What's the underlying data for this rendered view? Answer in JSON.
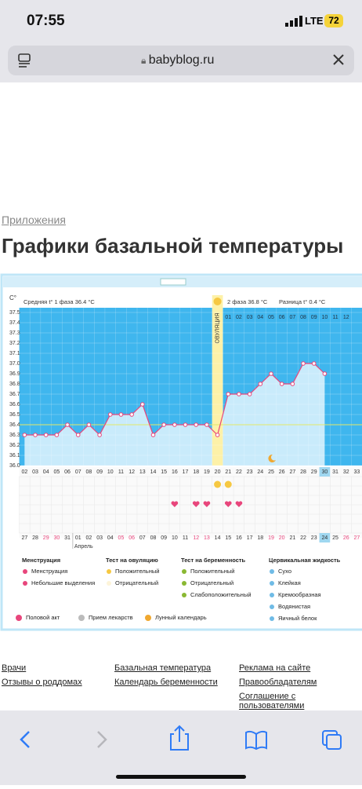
{
  "status": {
    "time": "07:55",
    "network": "LTE",
    "battery": "72"
  },
  "browser": {
    "url": "babyblog.ru"
  },
  "page": {
    "breadcrumb": "Приложения",
    "title": "Графики базальной температуры"
  },
  "chart_data": {
    "type": "line",
    "y_unit": "C°",
    "phase1": "Средняя t° 1 фаза 36.4 °C",
    "phase2": "2 фаза 36.8 °C",
    "difference": "Разница t° 0.4 °C",
    "ovulation": "ОВУЛЯЦИЯ",
    "categories": [
      "02",
      "03",
      "04",
      "05",
      "06",
      "07",
      "08",
      "09",
      "10",
      "11",
      "12",
      "13",
      "14",
      "15",
      "16",
      "17",
      "18",
      "19",
      "20",
      "21",
      "22",
      "23",
      "24",
      "25",
      "26",
      "27",
      "28",
      "29",
      "30",
      "31",
      "32",
      "33"
    ],
    "post_ovulation_days": [
      "01",
      "02",
      "03",
      "04",
      "05",
      "06",
      "07",
      "08",
      "09",
      "10",
      "11",
      "12"
    ],
    "dates": [
      "27",
      "28",
      "29",
      "30",
      "31",
      "01",
      "02",
      "03",
      "04",
      "05",
      "06",
      "07",
      "08",
      "09",
      "10",
      "11",
      "12",
      "13",
      "14",
      "15",
      "16",
      "17",
      "18",
      "19",
      "20",
      "21",
      "22",
      "23",
      "24",
      "25",
      "26",
      "27"
    ],
    "month": "Апрель",
    "values": [
      36.3,
      36.3,
      36.3,
      36.3,
      36.4,
      36.3,
      36.4,
      36.3,
      36.5,
      36.5,
      36.5,
      36.6,
      36.3,
      36.4,
      36.4,
      36.4,
      36.4,
      36.4,
      36.3,
      36.7,
      36.7,
      36.7,
      36.8,
      36.9,
      36.8,
      36.8,
      37.0,
      37.0,
      36.9,
      null,
      null,
      null
    ],
    "ylim": [
      36,
      37.5
    ],
    "yticks": [
      {
        "value": 36,
        "label": "36.0"
      },
      36.1,
      36.2,
      36.3,
      36.4,
      36.5,
      36.6,
      36.7,
      36.8,
      36.9,
      {
        "value": 37,
        "label": "37.0"
      },
      37.1,
      37.2,
      37.3,
      37.4,
      37.5
    ],
    "cover_line": 36.4,
    "color": "#e8467c",
    "fill": "#c9ebfb",
    "background": "#3fb6ee"
  },
  "legend": {
    "groups": [
      {
        "title": "Менструация",
        "items": [
          "Менструация",
          "Небольшие выделения"
        ]
      },
      {
        "title": "Тест на овуляцию",
        "items": [
          "Положительный",
          "Отрицательный"
        ]
      },
      {
        "title": "Тест на беременность",
        "items": [
          "Положительный",
          "Отрицательный",
          "Слабоположительный"
        ]
      },
      {
        "title": "Цервикальная жидкость",
        "items": [
          "Сухо",
          "Клейкая",
          "Кремообразная",
          "Водянистая",
          "Яичный белок"
        ]
      }
    ],
    "extra": [
      "Половой акт",
      "Прием лекарств",
      "Лунный календарь"
    ]
  },
  "footer": {
    "columns": [
      [
        "Врачи",
        "Отзывы о роддомах"
      ],
      [
        "Базальная температура",
        "Календарь беременности"
      ],
      [
        "Реклама на сайте",
        "Правообладателям",
        "Соглашение с пользователями"
      ]
    ]
  }
}
